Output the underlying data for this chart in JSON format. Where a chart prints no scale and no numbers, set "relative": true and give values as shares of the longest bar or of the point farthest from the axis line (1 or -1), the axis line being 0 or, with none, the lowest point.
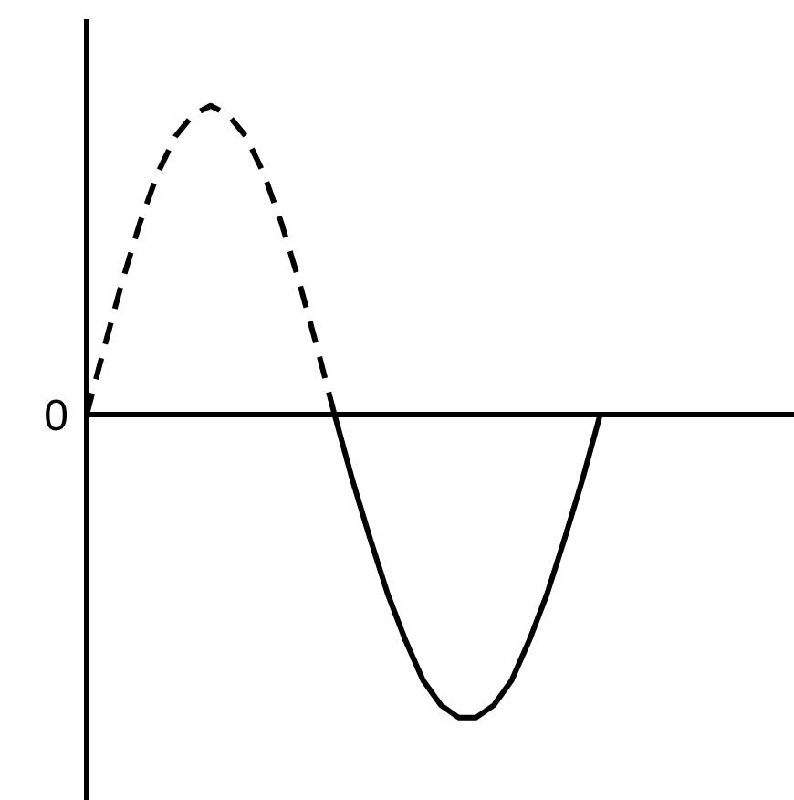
{
  "chart_data": {
    "type": "line",
    "relative": true,
    "categories": [
      null,
      null,
      null,
      null,
      null,
      null,
      null,
      null,
      null,
      null,
      null,
      null,
      null,
      null,
      null,
      null,
      null,
      null,
      null,
      null,
      null,
      null,
      null,
      null,
      null,
      null,
      null,
      null,
      null,
      null,
      null,
      null,
      null,
      null,
      null,
      null,
      null,
      null,
      null,
      null,
      null
    ],
    "annotations": [
      "0"
    ],
    "grid": false,
    "marker": "none",
    "series": [
      {
        "color": "#000000",
        "line_style": "dashed",
        "values": [
          0,
          0.22,
          0.43,
          0.62,
          0.78,
          0.9,
          0.97,
          1.0,
          0.97,
          0.9,
          0.78,
          0.62,
          0.43,
          0.22,
          0,
          null,
          null,
          null,
          null,
          null,
          null,
          null,
          null,
          null,
          null,
          null,
          null,
          null,
          null,
          null,
          null,
          null,
          null,
          null,
          null,
          null,
          null,
          null,
          null,
          null,
          null
        ]
      },
      {
        "color": "#000000",
        "line_style": "solid",
        "values": [
          null,
          null,
          null,
          null,
          null,
          null,
          null,
          null,
          null,
          null,
          null,
          null,
          null,
          null,
          0,
          -0.21,
          -0.4,
          -0.58,
          -0.73,
          -0.86,
          -0.94,
          -0.98,
          -0.98,
          -0.94,
          -0.86,
          -0.73,
          -0.58,
          -0.4,
          -0.21,
          0,
          null,
          null,
          null,
          null,
          null,
          null,
          null,
          null,
          null,
          null,
          null
        ]
      }
    ]
  }
}
